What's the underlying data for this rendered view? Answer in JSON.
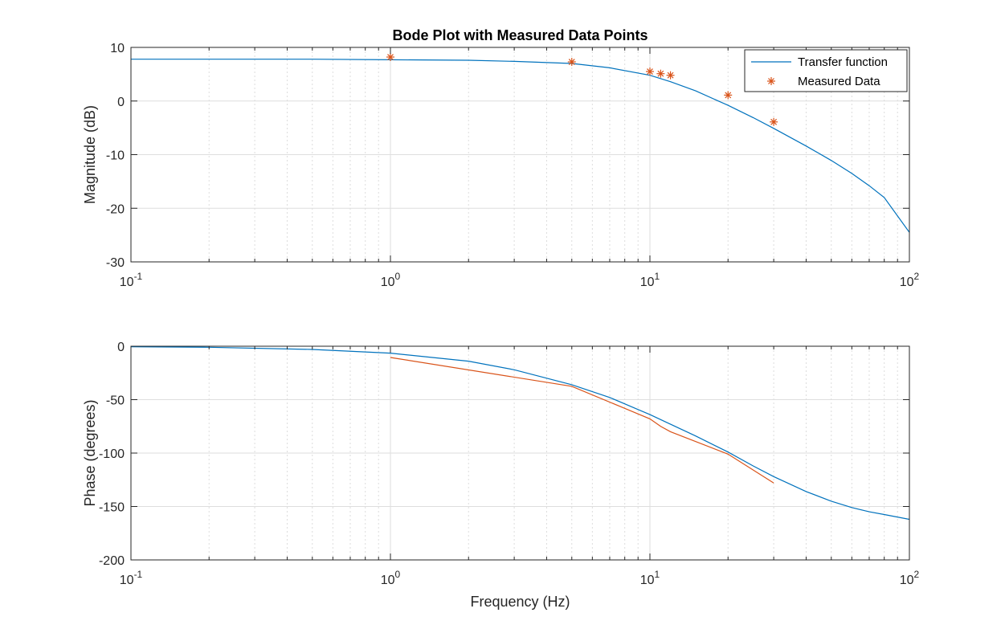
{
  "chart_data": [
    {
      "type": "line",
      "title": "Bode Plot with Measured Data Points",
      "xlabel": "",
      "ylabel": "Magnitude (dB)",
      "xscale": "log",
      "xlim": [
        0.1,
        100
      ],
      "ylim": [
        -30,
        10
      ],
      "x_ticks": [
        0.1,
        1,
        10,
        100
      ],
      "x_tick_labels": [
        {
          "base": "10",
          "exp": "-1"
        },
        {
          "base": "10",
          "exp": "0"
        },
        {
          "base": "10",
          "exp": "1"
        },
        {
          "base": "10",
          "exp": "2"
        }
      ],
      "y_ticks": [
        10,
        0,
        -10,
        -20,
        -30
      ],
      "y_tick_labels": [
        "10",
        "0",
        "-10",
        "-20",
        "-30"
      ],
      "grid": true,
      "legend_position": "top-right",
      "series": [
        {
          "name": "Transfer function",
          "style": "line",
          "color": "#0072BD",
          "x": [
            0.1,
            0.2,
            0.5,
            1,
            2,
            3,
            5,
            7,
            10,
            12,
            15,
            20,
            25,
            30,
            40,
            50,
            60,
            70,
            80,
            100
          ],
          "y": [
            7.8,
            7.8,
            7.8,
            7.7,
            7.6,
            7.4,
            7.0,
            6.2,
            4.8,
            3.6,
            1.9,
            -0.8,
            -3.1,
            -5.1,
            -8.4,
            -11.1,
            -13.5,
            -15.8,
            -18.0,
            -24.5
          ]
        },
        {
          "name": "Measured Data",
          "style": "marker",
          "marker": "*",
          "color": "#D95319",
          "x": [
            1,
            5,
            10,
            11,
            12,
            20,
            30
          ],
          "y": [
            8.2,
            7.3,
            5.5,
            5.1,
            4.8,
            1.1,
            -3.9
          ]
        }
      ]
    },
    {
      "type": "line",
      "title": "",
      "xlabel": "Frequency (Hz)",
      "ylabel": "Phase (degrees)",
      "xscale": "log",
      "xlim": [
        0.1,
        100
      ],
      "ylim": [
        -200,
        0
      ],
      "x_ticks": [
        0.1,
        1,
        10,
        100
      ],
      "x_tick_labels": [
        {
          "base": "10",
          "exp": "-1"
        },
        {
          "base": "10",
          "exp": "0"
        },
        {
          "base": "10",
          "exp": "1"
        },
        {
          "base": "10",
          "exp": "2"
        }
      ],
      "y_ticks": [
        0,
        -50,
        -100,
        -150,
        -200
      ],
      "y_tick_labels": [
        "0",
        "-50",
        "-100",
        "-150",
        "-200"
      ],
      "grid": true,
      "series": [
        {
          "style": "line",
          "color": "#0072BD",
          "x": [
            0.1,
            0.2,
            0.5,
            1,
            2,
            3,
            5,
            7,
            10,
            12,
            15,
            20,
            25,
            30,
            40,
            50,
            60,
            70,
            80,
            100
          ],
          "y": [
            -0.5,
            -1.0,
            -3.0,
            -6.5,
            -14.0,
            -22.0,
            -36.0,
            -48.0,
            -64.0,
            -73.0,
            -84.0,
            -99.0,
            -112.0,
            -122.0,
            -136.0,
            -145.0,
            -151.0,
            -155.0,
            -157.5,
            -162.0
          ]
        },
        {
          "style": "line",
          "color": "#D95319",
          "x": [
            1,
            5,
            10,
            11,
            12,
            20,
            30
          ],
          "y": [
            -10.5,
            -37.5,
            -68.0,
            -75.0,
            -80.0,
            -101.0,
            -128.0
          ]
        }
      ]
    }
  ]
}
